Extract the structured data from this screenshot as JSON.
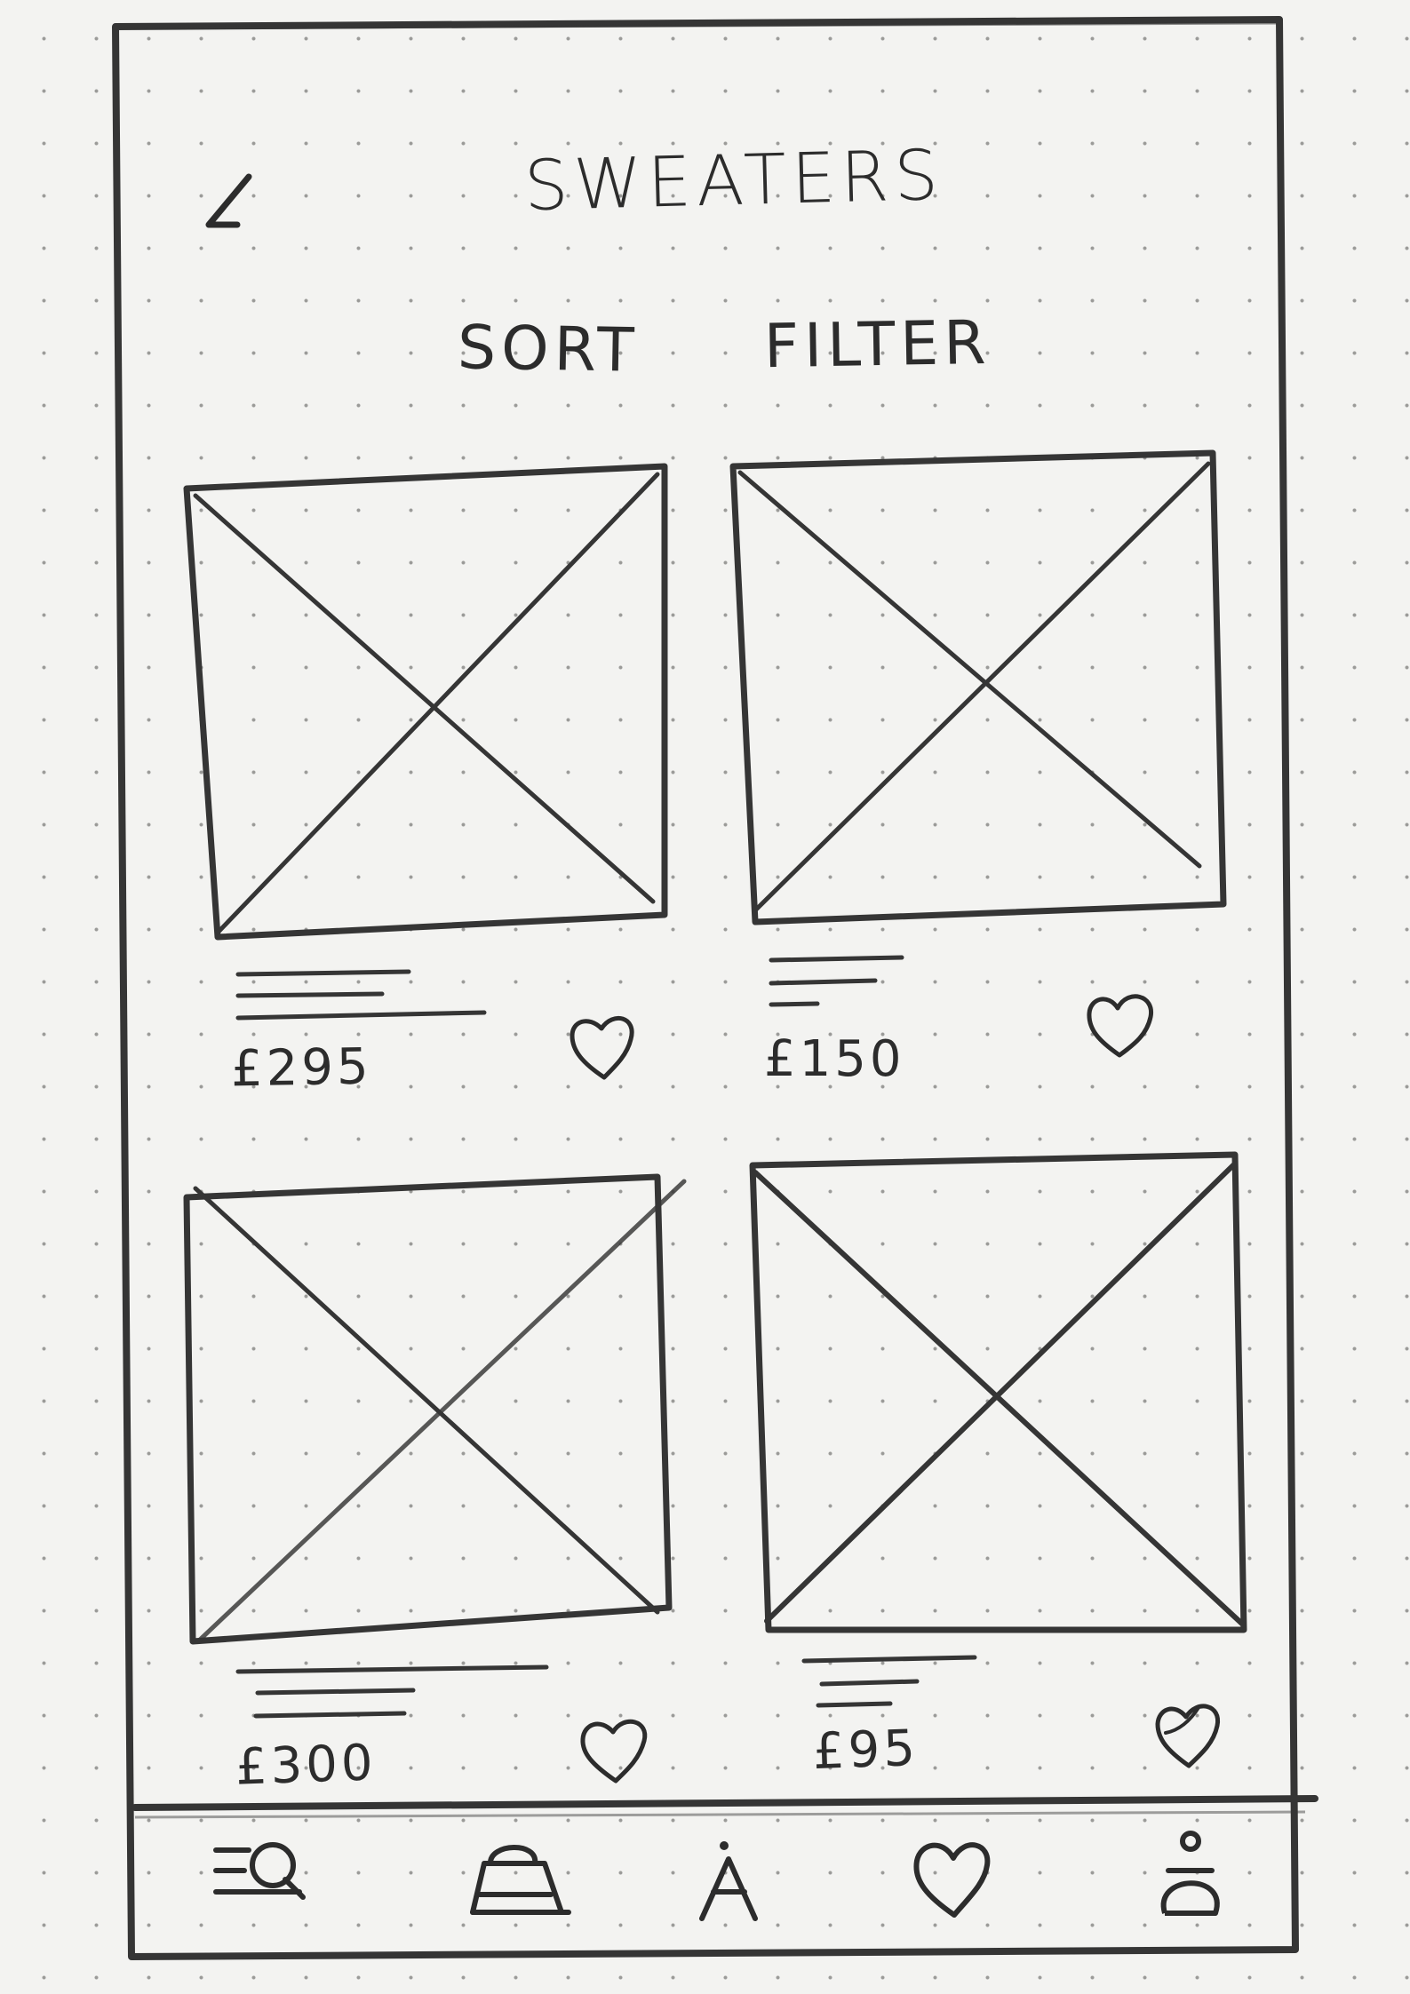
{
  "page": {
    "title": "SWEATERS"
  },
  "toolbar": {
    "sort_label": "SORT",
    "filter_label": "FILTER"
  },
  "products": [
    {
      "price": "£295"
    },
    {
      "price": "£150"
    },
    {
      "price": "£300"
    },
    {
      "price": "£95"
    }
  ],
  "navigation": {
    "items": [
      {
        "icon": "menu-search-icon"
      },
      {
        "icon": "shopping-bag-icon"
      },
      {
        "icon": "person-icon"
      },
      {
        "icon": "heart-icon"
      },
      {
        "icon": "profile-icon"
      }
    ]
  },
  "colors": {
    "paper": "#f3f3f1",
    "ink": "#2c2c2c",
    "dot_grid": "#9a9a98"
  }
}
